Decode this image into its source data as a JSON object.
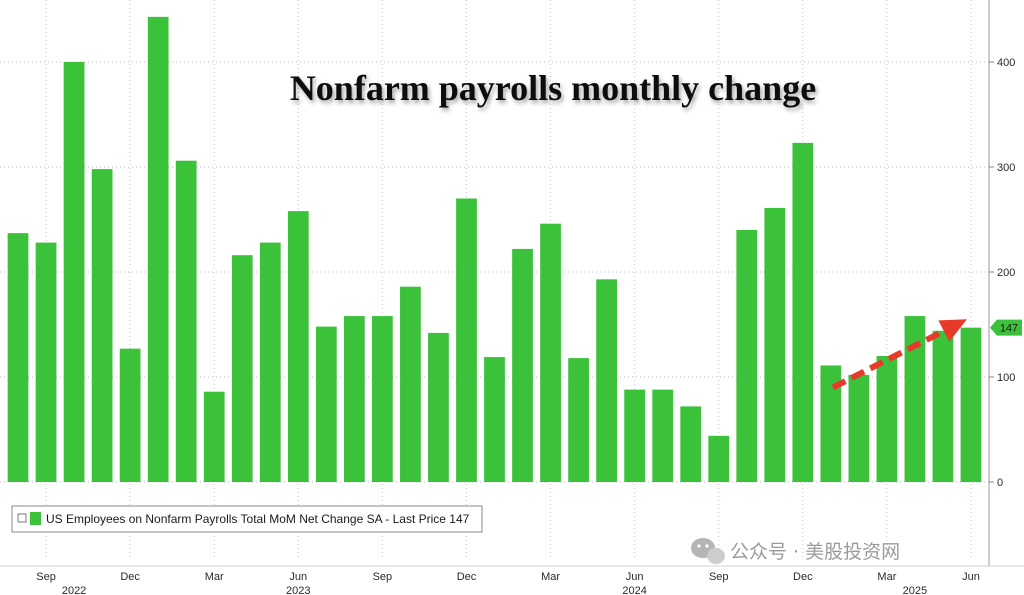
{
  "chart_data": {
    "type": "bar",
    "title": "Nonfarm payrolls monthly change",
    "xlabel": "",
    "ylabel": "",
    "ylim": [
      -80,
      450
    ],
    "yticks": [
      0,
      100,
      200,
      300,
      400
    ],
    "grid": true,
    "legend_placement": "bottom-left",
    "color": "#3cc13b",
    "series": [
      {
        "name": "US Employees on Nonfarm Payrolls Total MoM Net Change SA - Last Price 147",
        "values": [
          237,
          228,
          400,
          298,
          127,
          443,
          306,
          86,
          216,
          228,
          258,
          148,
          158,
          158,
          186,
          142,
          270,
          119,
          222,
          246,
          118,
          193,
          88,
          88,
          72,
          44,
          240,
          261,
          323,
          111,
          102,
          120,
          158,
          144,
          147
        ]
      }
    ],
    "x_tick_labels": [
      {
        "index": 1,
        "label": "Sep"
      },
      {
        "index": 4,
        "label": "Dec"
      },
      {
        "index": 7,
        "label": "Mar"
      },
      {
        "index": 10,
        "label": "Jun"
      },
      {
        "index": 13,
        "label": "Sep"
      },
      {
        "index": 16,
        "label": "Dec"
      },
      {
        "index": 19,
        "label": "Mar"
      },
      {
        "index": 22,
        "label": "Jun"
      },
      {
        "index": 25,
        "label": "Sep"
      },
      {
        "index": 28,
        "label": "Dec"
      },
      {
        "index": 31,
        "label": "Mar"
      },
      {
        "index": 34,
        "label": "Jun"
      }
    ],
    "year_labels": [
      {
        "index": 2,
        "label": "2022"
      },
      {
        "index": 10,
        "label": "2023"
      },
      {
        "index": 22,
        "label": "2024"
      },
      {
        "index": 32,
        "label": "2025"
      }
    ],
    "last_price_label": "147",
    "annotation": {
      "type": "arrow",
      "color": "#e83a2b",
      "from_index": 29,
      "from_value": 90,
      "to_index": 34,
      "to_value": 155
    }
  },
  "watermark": "公众号 · 美股投资网"
}
